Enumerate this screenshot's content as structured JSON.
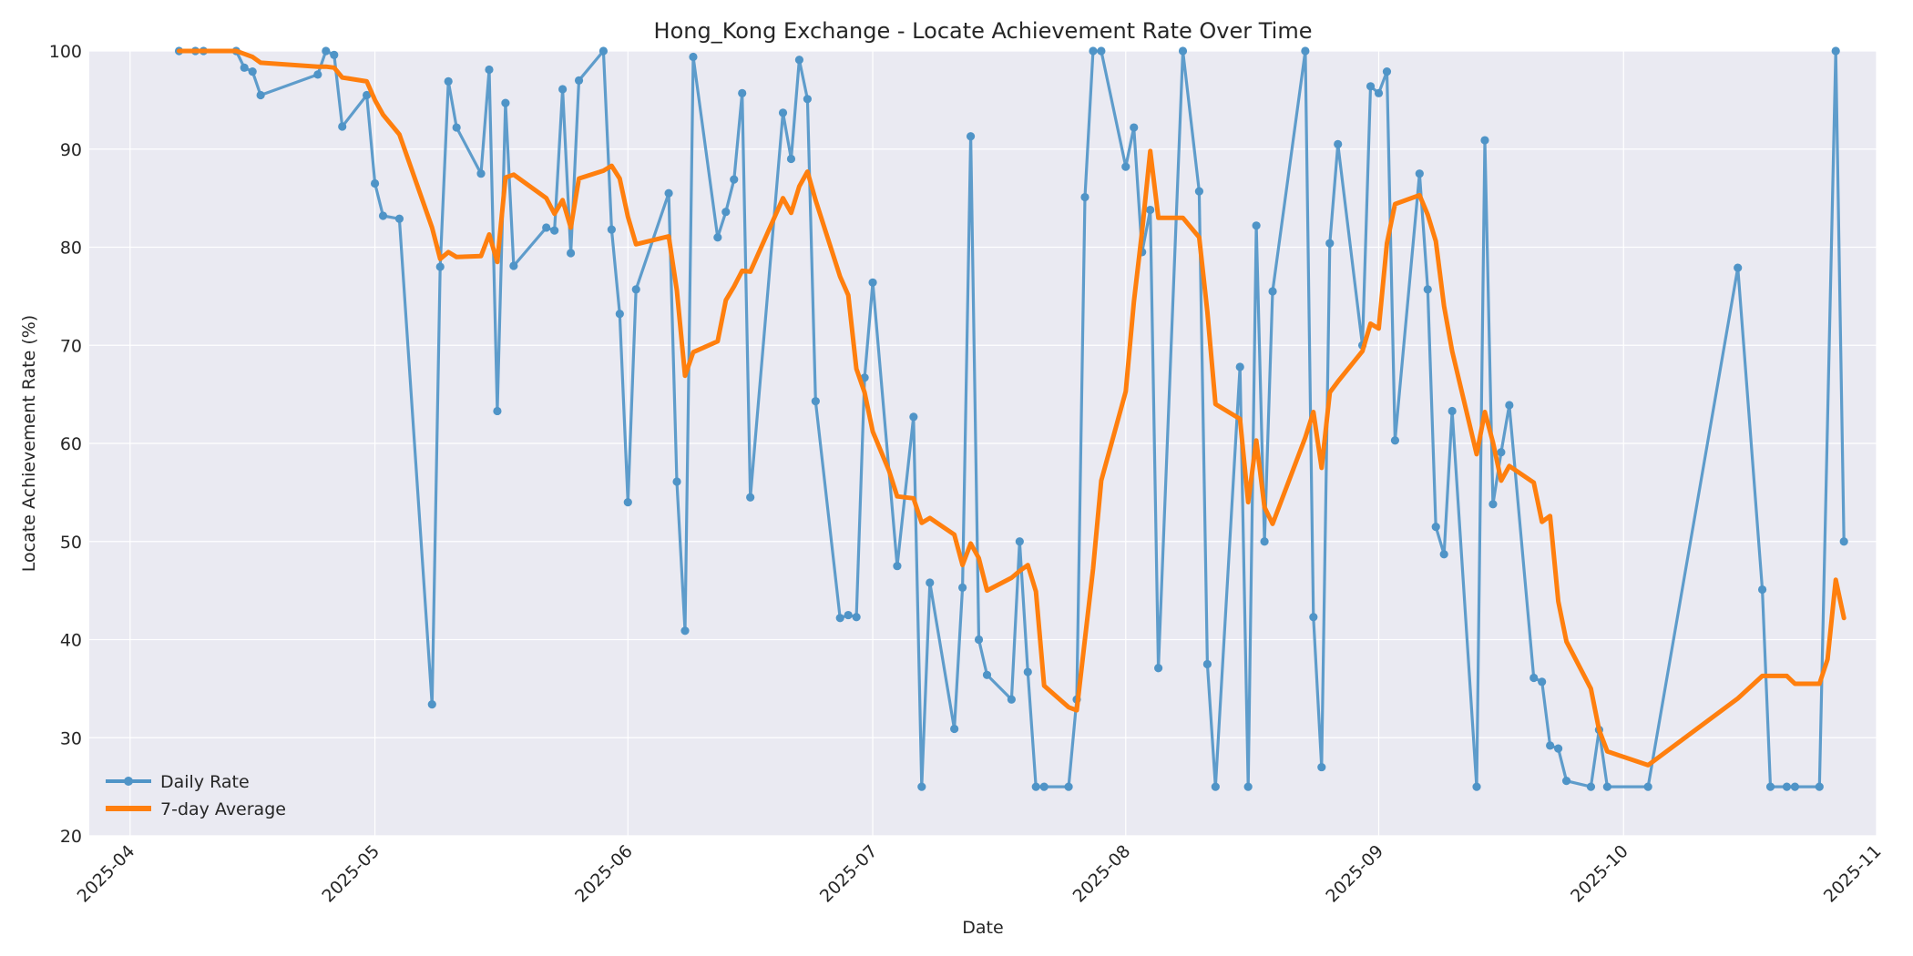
{
  "chart_data": {
    "type": "line",
    "title": "Hong_Kong Exchange - Locate Achievement Rate Over Time",
    "xlabel": "Date",
    "ylabel": "Locate Achievement Rate (%)",
    "x_ticks": [
      "2025-04",
      "2025-05",
      "2025-06",
      "2025-07",
      "2025-08",
      "2025-09",
      "2025-10",
      "2025-11"
    ],
    "x_tick_dates": [
      "2025-04-01",
      "2025-05-01",
      "2025-06-01",
      "2025-07-01",
      "2025-08-01",
      "2025-09-01",
      "2025-10-01",
      "2025-11-01"
    ],
    "xlim": [
      "2025-03-27",
      "2025-11-01"
    ],
    "y_ticks": [
      "20",
      "30",
      "40",
      "50",
      "60",
      "70",
      "80",
      "90",
      "100"
    ],
    "y_tick_values": [
      20,
      30,
      40,
      50,
      60,
      70,
      80,
      90,
      100
    ],
    "ylim": [
      20,
      100
    ],
    "grid": true,
    "legend": {
      "position": "lower-left"
    },
    "series": [
      {
        "name": "Daily Rate",
        "color": "#4f94c7",
        "marker": "circle",
        "points": [
          [
            "2025-04-07",
            100
          ],
          [
            "2025-04-09",
            100
          ],
          [
            "2025-04-10",
            100
          ],
          [
            "2025-04-14",
            100
          ],
          [
            "2025-04-15",
            98.3
          ],
          [
            "2025-04-16",
            97.9
          ],
          [
            "2025-04-17",
            95.5
          ],
          [
            "2025-04-24",
            97.6
          ],
          [
            "2025-04-25",
            100
          ],
          [
            "2025-04-26",
            99.6
          ],
          [
            "2025-04-27",
            92.3
          ],
          [
            "2025-04-30",
            95.5
          ],
          [
            "2025-05-01",
            86.5
          ],
          [
            "2025-05-02",
            83.2
          ],
          [
            "2025-05-04",
            82.9
          ],
          [
            "2025-05-08",
            33.4
          ],
          [
            "2025-05-09",
            78
          ],
          [
            "2025-05-10",
            96.9
          ],
          [
            "2025-05-11",
            92.2
          ],
          [
            "2025-05-14",
            87.5
          ],
          [
            "2025-05-15",
            98.1
          ],
          [
            "2025-05-16",
            63.3
          ],
          [
            "2025-05-17",
            94.7
          ],
          [
            "2025-05-18",
            78.1
          ],
          [
            "2025-05-22",
            82
          ],
          [
            "2025-05-23",
            81.7
          ],
          [
            "2025-05-24",
            96.1
          ],
          [
            "2025-05-25",
            79.4
          ],
          [
            "2025-05-26",
            97
          ],
          [
            "2025-05-29",
            100
          ],
          [
            "2025-05-30",
            81.8
          ],
          [
            "2025-05-31",
            73.2
          ],
          [
            "2025-06-01",
            54
          ],
          [
            "2025-06-02",
            75.7
          ],
          [
            "2025-06-06",
            85.5
          ],
          [
            "2025-06-07",
            56.1
          ],
          [
            "2025-06-08",
            40.9
          ],
          [
            "2025-06-09",
            99.4
          ],
          [
            "2025-06-12",
            81
          ],
          [
            "2025-06-13",
            83.6
          ],
          [
            "2025-06-14",
            86.9
          ],
          [
            "2025-06-15",
            95.7
          ],
          [
            "2025-06-16",
            54.5
          ],
          [
            "2025-06-20",
            93.7
          ],
          [
            "2025-06-21",
            89
          ],
          [
            "2025-06-22",
            99.1
          ],
          [
            "2025-06-23",
            95.1
          ],
          [
            "2025-06-24",
            64.3
          ],
          [
            "2025-06-27",
            42.2
          ],
          [
            "2025-06-28",
            42.5
          ],
          [
            "2025-06-29",
            42.3
          ],
          [
            "2025-06-30",
            66.7
          ],
          [
            "2025-07-01",
            76.4
          ],
          [
            "2025-07-04",
            47.5
          ],
          [
            "2025-07-06",
            62.7
          ],
          [
            "2025-07-07",
            25
          ],
          [
            "2025-07-08",
            45.8
          ],
          [
            "2025-07-11",
            30.9
          ],
          [
            "2025-07-12",
            45.3
          ],
          [
            "2025-07-13",
            91.3
          ],
          [
            "2025-07-14",
            40
          ],
          [
            "2025-07-15",
            36.4
          ],
          [
            "2025-07-18",
            33.9
          ],
          [
            "2025-07-19",
            50
          ],
          [
            "2025-07-20",
            36.7
          ],
          [
            "2025-07-21",
            25
          ],
          [
            "2025-07-22",
            25
          ],
          [
            "2025-07-25",
            25
          ],
          [
            "2025-07-26",
            33.9
          ],
          [
            "2025-07-27",
            85.1
          ],
          [
            "2025-07-28",
            100
          ],
          [
            "2025-07-29",
            100
          ],
          [
            "2025-08-01",
            88.2
          ],
          [
            "2025-08-02",
            92.2
          ],
          [
            "2025-08-03",
            79.5
          ],
          [
            "2025-08-04",
            83.8
          ],
          [
            "2025-08-05",
            37.1
          ],
          [
            "2025-08-08",
            100
          ],
          [
            "2025-08-10",
            85.7
          ],
          [
            "2025-08-11",
            37.5
          ],
          [
            "2025-08-12",
            25
          ],
          [
            "2025-08-15",
            67.8
          ],
          [
            "2025-08-16",
            25
          ],
          [
            "2025-08-17",
            82.2
          ],
          [
            "2025-08-18",
            50
          ],
          [
            "2025-08-19",
            75.5
          ],
          [
            "2025-08-23",
            100
          ],
          [
            "2025-08-24",
            42.3
          ],
          [
            "2025-08-25",
            27
          ],
          [
            "2025-08-26",
            80.4
          ],
          [
            "2025-08-27",
            90.5
          ],
          [
            "2025-08-30",
            70
          ],
          [
            "2025-08-31",
            96.4
          ],
          [
            "2025-09-01",
            95.7
          ],
          [
            "2025-09-02",
            97.9
          ],
          [
            "2025-09-03",
            60.3
          ],
          [
            "2025-09-06",
            87.5
          ],
          [
            "2025-09-07",
            75.7
          ],
          [
            "2025-09-08",
            51.5
          ],
          [
            "2025-09-09",
            48.7
          ],
          [
            "2025-09-10",
            63.3
          ],
          [
            "2025-09-13",
            25
          ],
          [
            "2025-09-14",
            90.9
          ],
          [
            "2025-09-15",
            53.8
          ],
          [
            "2025-09-16",
            59.1
          ],
          [
            "2025-09-17",
            63.9
          ],
          [
            "2025-09-20",
            36.1
          ],
          [
            "2025-09-21",
            35.7
          ],
          [
            "2025-09-22",
            29.2
          ],
          [
            "2025-09-23",
            28.9
          ],
          [
            "2025-09-24",
            25.6
          ],
          [
            "2025-09-27",
            25
          ],
          [
            "2025-09-28",
            30.8
          ],
          [
            "2025-09-29",
            25
          ],
          [
            "2025-10-04",
            25
          ],
          [
            "2025-10-15",
            77.9
          ],
          [
            "2025-10-18",
            45.1
          ],
          [
            "2025-10-19",
            25
          ],
          [
            "2025-10-21",
            25
          ],
          [
            "2025-10-22",
            25
          ],
          [
            "2025-10-25",
            25
          ],
          [
            "2025-10-27",
            100
          ],
          [
            "2025-10-28",
            50
          ]
        ]
      },
      {
        "name": "7-day Average",
        "color": "#ff7f0e",
        "marker": "none",
        "points": [
          [
            "2025-04-07",
            100
          ],
          [
            "2025-04-09",
            100
          ],
          [
            "2025-04-10",
            100
          ],
          [
            "2025-04-14",
            100
          ],
          [
            "2025-04-15",
            99.7
          ],
          [
            "2025-04-16",
            99.4
          ],
          [
            "2025-04-17",
            98.8
          ],
          [
            "2025-04-24",
            98.4
          ],
          [
            "2025-04-25",
            98.4
          ],
          [
            "2025-04-26",
            98.3
          ],
          [
            "2025-04-27",
            97.3
          ],
          [
            "2025-04-30",
            96.9
          ],
          [
            "2025-05-01",
            95
          ],
          [
            "2025-05-02",
            93.5
          ],
          [
            "2025-05-04",
            91.5
          ],
          [
            "2025-05-08",
            82
          ],
          [
            "2025-05-09",
            78.8
          ],
          [
            "2025-05-10",
            79.5
          ],
          [
            "2025-05-11",
            79
          ],
          [
            "2025-05-14",
            79.1
          ],
          [
            "2025-05-15",
            81.3
          ],
          [
            "2025-05-16",
            78.5
          ],
          [
            "2025-05-17",
            87.1
          ],
          [
            "2025-05-18",
            87.4
          ],
          [
            "2025-05-22",
            85
          ],
          [
            "2025-05-23",
            83.4
          ],
          [
            "2025-05-24",
            84.8
          ],
          [
            "2025-05-25",
            82
          ],
          [
            "2025-05-26",
            87
          ],
          [
            "2025-05-29",
            87.8
          ],
          [
            "2025-05-30",
            88.3
          ],
          [
            "2025-05-31",
            87
          ],
          [
            "2025-06-01",
            83.1
          ],
          [
            "2025-06-02",
            80.3
          ],
          [
            "2025-06-06",
            81.1
          ],
          [
            "2025-06-07",
            75.6
          ],
          [
            "2025-06-08",
            66.9
          ],
          [
            "2025-06-09",
            69.3
          ],
          [
            "2025-06-12",
            70.4
          ],
          [
            "2025-06-13",
            74.6
          ],
          [
            "2025-06-14",
            76
          ],
          [
            "2025-06-15",
            77.6
          ],
          [
            "2025-06-16",
            77.5
          ],
          [
            "2025-06-20",
            85
          ],
          [
            "2025-06-21",
            83.5
          ],
          [
            "2025-06-22",
            86.2
          ],
          [
            "2025-06-23",
            87.7
          ],
          [
            "2025-06-24",
            84.8
          ],
          [
            "2025-06-27",
            77
          ],
          [
            "2025-06-28",
            75.1
          ],
          [
            "2025-06-29",
            67.6
          ],
          [
            "2025-06-30",
            65.2
          ],
          [
            "2025-07-01",
            61.2
          ],
          [
            "2025-07-03",
            57.2
          ],
          [
            "2025-07-04",
            54.6
          ],
          [
            "2025-07-06",
            54.4
          ],
          [
            "2025-07-07",
            51.9
          ],
          [
            "2025-07-08",
            52.4
          ],
          [
            "2025-07-11",
            50.7
          ],
          [
            "2025-07-12",
            47.6
          ],
          [
            "2025-07-13",
            49.8
          ],
          [
            "2025-07-14",
            48.3
          ],
          [
            "2025-07-15",
            45
          ],
          [
            "2025-07-18",
            46.3
          ],
          [
            "2025-07-19",
            47
          ],
          [
            "2025-07-20",
            47.6
          ],
          [
            "2025-07-21",
            44.9
          ],
          [
            "2025-07-22",
            35.3
          ],
          [
            "2025-07-25",
            33.1
          ],
          [
            "2025-07-26",
            32.8
          ],
          [
            "2025-07-28",
            47.2
          ],
          [
            "2025-07-29",
            56.2
          ],
          [
            "2025-08-01",
            65.3
          ],
          [
            "2025-08-02",
            74.4
          ],
          [
            "2025-08-03",
            81.6
          ],
          [
            "2025-08-04",
            89.8
          ],
          [
            "2025-08-05",
            83
          ],
          [
            "2025-08-08",
            83
          ],
          [
            "2025-08-10",
            81
          ],
          [
            "2025-08-11",
            73.4
          ],
          [
            "2025-08-12",
            64
          ],
          [
            "2025-08-15",
            62.5
          ],
          [
            "2025-08-16",
            54
          ],
          [
            "2025-08-17",
            60.3
          ],
          [
            "2025-08-18",
            53.5
          ],
          [
            "2025-08-19",
            51.8
          ],
          [
            "2025-08-23",
            60.6
          ],
          [
            "2025-08-24",
            63.2
          ],
          [
            "2025-08-25",
            57.5
          ],
          [
            "2025-08-26",
            65.2
          ],
          [
            "2025-08-27",
            66.3
          ],
          [
            "2025-08-30",
            69.4
          ],
          [
            "2025-08-31",
            72.2
          ],
          [
            "2025-09-01",
            71.7
          ],
          [
            "2025-09-02",
            80.4
          ],
          [
            "2025-09-03",
            84.4
          ],
          [
            "2025-09-06",
            85.3
          ],
          [
            "2025-09-07",
            83.3
          ],
          [
            "2025-09-08",
            80.6
          ],
          [
            "2025-09-09",
            74
          ],
          [
            "2025-09-10",
            69.4
          ],
          [
            "2025-09-13",
            58.9
          ],
          [
            "2025-09-14",
            63.2
          ],
          [
            "2025-09-15",
            60.1
          ],
          [
            "2025-09-16",
            56.2
          ],
          [
            "2025-09-17",
            57.7
          ],
          [
            "2025-09-20",
            56
          ],
          [
            "2025-09-21",
            52
          ],
          [
            "2025-09-22",
            52.6
          ],
          [
            "2025-09-23",
            43.9
          ],
          [
            "2025-09-24",
            39.8
          ],
          [
            "2025-09-27",
            35
          ],
          [
            "2025-09-28",
            30.8
          ],
          [
            "2025-09-29",
            28.6
          ],
          [
            "2025-10-04",
            27.2
          ],
          [
            "2025-10-15",
            34
          ],
          [
            "2025-10-18",
            36.3
          ],
          [
            "2025-10-19",
            36.3
          ],
          [
            "2025-10-21",
            36.3
          ],
          [
            "2025-10-22",
            35.5
          ],
          [
            "2025-10-25",
            35.5
          ],
          [
            "2025-10-26",
            38
          ],
          [
            "2025-10-27",
            46.1
          ],
          [
            "2025-10-28",
            42.2
          ]
        ]
      }
    ]
  }
}
